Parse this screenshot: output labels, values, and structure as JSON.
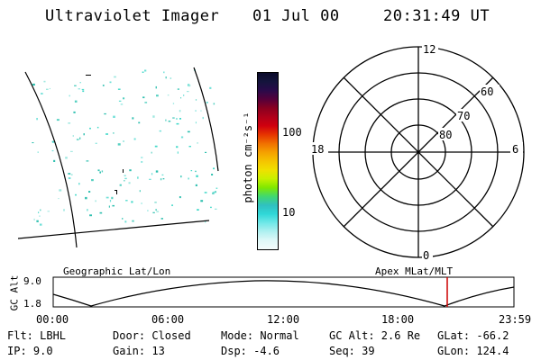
{
  "header": {
    "instrument": "Ultraviolet Imager",
    "date": "01 Jul 00",
    "time": "20:31:49 UT"
  },
  "colorbar": {
    "unit_label": "photon cm⁻²s⁻¹",
    "ticks": [
      "100",
      "10"
    ],
    "colors": [
      "#0b0b2a",
      "#14143c",
      "#2a0a4a",
      "#55003a",
      "#8a0020",
      "#b0001a",
      "#d0000e",
      "#e63400",
      "#f07000",
      "#f5a000",
      "#f5c400",
      "#f0e000",
      "#c8f000",
      "#80e800",
      "#40d870",
      "#30c0c0",
      "#30d8d8",
      "#70e8e8",
      "#b0f0f0",
      "#dff8f8",
      "#f4fbfb"
    ]
  },
  "polar": {
    "mlt_labels": {
      "top": "12",
      "left": "18",
      "right": "6",
      "bottom": "0"
    },
    "lat_labels": [
      "60",
      "70",
      "80"
    ]
  },
  "timeline": {
    "left_label": "Geographic Lat/Lon",
    "right_label": "Apex MLat/MLT",
    "axis_title": "GC Alt",
    "y_ticks": [
      "9.0",
      "1.8"
    ],
    "x_ticks": [
      "00:00",
      "06:00",
      "12:00",
      "18:00",
      "23:59"
    ],
    "marker_color": "#cc0000"
  },
  "info": {
    "col1": [
      "Flt: LBHL",
      "IP:  9.0"
    ],
    "col2": [
      "Door: Closed",
      "Gain: 13"
    ],
    "col3": [
      "Mode: Normal",
      "Dsp:    -4.6"
    ],
    "col4": [
      "GC Alt: 2.6 Re",
      "Seq: 39"
    ],
    "col5": [
      "GLat: -66.2",
      "GLon: 124.4"
    ]
  }
}
